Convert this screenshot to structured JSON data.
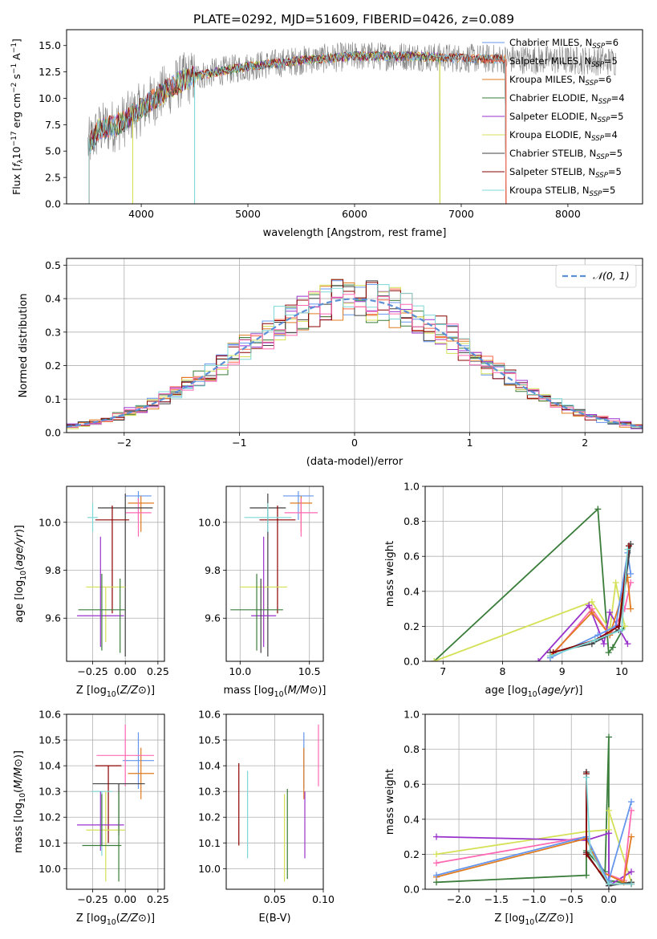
{
  "figure_title": "PLATE=0292, MJD=51609, FIBERID=0426, z=0.089",
  "chart_data": [
    {
      "id": "spectrum",
      "type": "line",
      "title": "PLATE=0292, MJD=51609, FIBERID=0426, z=0.089",
      "xlabel": "wavelength [Angstrom, rest frame]",
      "ylabel_parts": [
        "Flux [",
        "f",
        "λ",
        "10",
        "−17",
        " erg cm",
        "−2",
        " s",
        "−1",
        " A",
        "−1",
        "]"
      ],
      "xlim": [
        3300,
        8700
      ],
      "ylim": [
        0,
        16.5
      ],
      "xticks": [
        4000,
        5000,
        6000,
        7000,
        8000
      ],
      "yticks": [
        0.0,
        2.5,
        5.0,
        7.5,
        10.0,
        12.5,
        15.0
      ],
      "grid": false,
      "legend_position": "right",
      "series": [
        {
          "name": "Chabrier MILES",
          "nssp": 6,
          "color": "#6495ed",
          "x_range": [
            3510,
            7420
          ]
        },
        {
          "name": "Salpeter MILES",
          "nssp": 5,
          "color": "#ff6347",
          "x_range": [
            3510,
            7420
          ]
        },
        {
          "name": "Kroupa MILES",
          "nssp": 6,
          "color": "#e07b20",
          "x_range": [
            3510,
            7420
          ]
        },
        {
          "name": "Chabrier ELODIE",
          "nssp": 4,
          "color": "#3a7d3a",
          "x_range": [
            3510,
            6800
          ]
        },
        {
          "name": "Salpeter ELODIE",
          "nssp": 5,
          "color": "#9932cc",
          "x_range": [
            3510,
            6800
          ]
        },
        {
          "name": "Kroupa ELODIE",
          "nssp": 4,
          "color": "#d4e157",
          "x_range": [
            3510,
            6800
          ]
        },
        {
          "name": "Chabrier STELIB",
          "nssp": 5,
          "color": "#404040",
          "x_range": [
            3510,
            7420
          ]
        },
        {
          "name": "Salpeter STELIB",
          "nssp": 5,
          "color": "#8b0000",
          "x_range": [
            3510,
            7420
          ]
        },
        {
          "name": "Kroupa STELIB",
          "nssp": 5,
          "color": "#7fd8d8",
          "x_range": [
            3510,
            7420
          ]
        }
      ],
      "data_color": "#808080",
      "data_x_range": [
        3500,
        8450
      ],
      "continuum_y": [
        [
          3500,
          5.5
        ],
        [
          3600,
          7.0
        ],
        [
          3800,
          7.6
        ],
        [
          4000,
          9.0
        ],
        [
          4200,
          10.5
        ],
        [
          4400,
          11.8
        ],
        [
          4700,
          12.5
        ],
        [
          5000,
          13.0
        ],
        [
          5500,
          13.6
        ],
        [
          6000,
          14.0
        ],
        [
          6500,
          14.0
        ],
        [
          7000,
          13.8
        ],
        [
          7500,
          13.7
        ],
        [
          8000,
          13.6
        ],
        [
          8450,
          13.5
        ]
      ]
    },
    {
      "id": "residuals",
      "type": "histogram",
      "xlabel": "(data-model)/error",
      "ylabel": "Normed distribution",
      "xlim": [
        -2.5,
        2.5
      ],
      "ylim": [
        0,
        0.52
      ],
      "xticks": [
        -2,
        -1,
        0,
        1,
        2
      ],
      "yticks": [
        0.0,
        0.1,
        0.2,
        0.3,
        0.4,
        0.5
      ],
      "grid": true,
      "legend_position": "top-right",
      "reference_curve": {
        "name": "𝒩(0, 1)",
        "color": "#5b8fd6",
        "mean": 0,
        "sigma": 1
      },
      "bins": 50
    },
    {
      "id": "z-vs-age",
      "type": "errorbar",
      "xlabel": "Z [log10(Z/Z⊙)]",
      "ylabel": "age  [log10(age/yr)]",
      "xlim": [
        -0.45,
        0.3
      ],
      "ylim": [
        9.42,
        10.15
      ],
      "xticks": [
        -0.25,
        0.0,
        0.25
      ],
      "xtick_labels": [
        "−0.25",
        "0.00",
        "0.25"
      ],
      "yticks": [
        9.6,
        9.8,
        10.0
      ],
      "grid": true,
      "points": [
        {
          "color": "#6495ed",
          "x": 0.1,
          "xerr": 0.1,
          "y": 10.11,
          "yerr": [
            0.1,
            0.02
          ]
        },
        {
          "color": "#e07b20",
          "x": 0.12,
          "xerr": 0.1,
          "y": 10.08,
          "yerr": [
            0.12,
            0.03
          ]
        },
        {
          "color": "#ff69b4",
          "x": 0.1,
          "xerr": 0.1,
          "y": 10.04,
          "yerr": [
            0.1,
            0.06
          ]
        },
        {
          "color": "#404040",
          "x": 0.0,
          "xerr": 0.21,
          "y": 10.06,
          "yerr": [
            0.62,
            0.06
          ]
        },
        {
          "color": "#8b0000",
          "x": -0.1,
          "xerr": 0.13,
          "y": 10.01,
          "yerr": [
            0.39,
            0.06
          ]
        },
        {
          "color": "#7fd8d8",
          "x": -0.25,
          "xerr": 0.04,
          "y": 10.02,
          "yerr": [
            0.06,
            0.06
          ]
        },
        {
          "color": "#d4e157",
          "x": -0.15,
          "xerr": 0.15,
          "y": 9.73,
          "yerr": [
            0.23,
            0.0
          ]
        },
        {
          "color": "#9932cc",
          "x": -0.19,
          "xerr": 0.18,
          "y": 9.61,
          "yerr": [
            0.13,
            0.33
          ]
        },
        {
          "color": "#3a7d3a",
          "x": -0.18,
          "xerr": 0.18,
          "y": 9.635,
          "yerr": [
            0.17,
            0.15
          ]
        },
        {
          "color": "#3a7d3a",
          "x": -0.04,
          "xerr": 0.0,
          "y": 9.635,
          "yerr": [
            0.18,
            0.13
          ]
        }
      ]
    },
    {
      "id": "mass-vs-age",
      "type": "errorbar",
      "xlabel": "mass [log10(M/M⊙)]",
      "ylabel": "",
      "xlim": [
        9.9,
        10.6
      ],
      "ylim": [
        9.42,
        10.15
      ],
      "xticks": [
        10.0,
        10.5
      ],
      "xtick_labels": [
        "10.0",
        "10.5"
      ],
      "yticks": [
        9.6,
        9.8,
        10.0
      ],
      "grid": true,
      "points": [
        {
          "color": "#6495ed",
          "x": 10.42,
          "xerr": 0.11,
          "y": 10.11,
          "yerr": [
            0.1,
            0.02
          ]
        },
        {
          "color": "#e07b20",
          "x": 10.44,
          "xerr": 0.08,
          "y": 10.08,
          "yerr": [
            0.12,
            0.03
          ]
        },
        {
          "color": "#ff69b4",
          "x": 10.44,
          "xerr": 0.12,
          "y": 10.04,
          "yerr": [
            0.1,
            0.06
          ]
        },
        {
          "color": "#404040",
          "x": 10.2,
          "xerr": 0.13,
          "y": 10.06,
          "yerr": [
            0.62,
            0.06
          ]
        },
        {
          "color": "#8b0000",
          "x": 10.27,
          "xerr": 0.13,
          "y": 10.01,
          "yerr": [
            0.39,
            0.06
          ]
        },
        {
          "color": "#7fd8d8",
          "x": 10.2,
          "xerr": 0.17,
          "y": 10.02,
          "yerr": [
            0.06,
            0.06
          ]
        },
        {
          "color": "#d4e157",
          "x": 10.17,
          "xerr": 0.17,
          "y": 9.73,
          "yerr": [
            0.23,
            0.0
          ]
        },
        {
          "color": "#9932cc",
          "x": 10.17,
          "xerr": 0.09,
          "y": 9.61,
          "yerr": [
            0.13,
            0.33
          ]
        },
        {
          "color": "#3a7d3a",
          "x": 10.12,
          "xerr": 0.19,
          "y": 9.635,
          "yerr": [
            0.17,
            0.15
          ]
        },
        {
          "color": "#404040",
          "x": 10.15,
          "xerr": 0.0,
          "y": 9.635,
          "yerr": [
            0.18,
            0.13
          ]
        }
      ]
    },
    {
      "id": "age-vs-weight",
      "type": "line",
      "xlabel": "age  [log10(age/yr)]",
      "ylabel": "mass weight",
      "xlim": [
        6.7,
        10.35
      ],
      "ylim": [
        0,
        1.0
      ],
      "xticks": [
        7,
        8,
        9,
        10
      ],
      "yticks": [
        0.0,
        0.2,
        0.4,
        0.6,
        0.8,
        1.0
      ],
      "grid": true,
      "series": [
        {
          "color": "#3a7d3a",
          "x": [
            6.85,
            9.6,
            9.78,
            9.85,
            10.05
          ],
          "y": [
            0.0,
            0.87,
            0.05,
            0.08,
            0.2
          ]
        },
        {
          "color": "#d4e157",
          "x": [
            6.85,
            9.5,
            9.8,
            9.9,
            10.05
          ],
          "y": [
            0.0,
            0.34,
            0.18,
            0.45,
            0.2
          ]
        },
        {
          "color": "#9932cc",
          "x": [
            8.6,
            9.45,
            9.7,
            9.8,
            10.1
          ],
          "y": [
            0.0,
            0.32,
            0.1,
            0.28,
            0.1
          ]
        },
        {
          "color": "#ff69b4",
          "x": [
            8.8,
            9.5,
            9.8,
            10.05,
            10.15
          ],
          "y": [
            0.02,
            0.3,
            0.15,
            0.3,
            0.45
          ]
        },
        {
          "color": "#e07b20",
          "x": [
            8.8,
            9.5,
            9.8,
            10.1,
            10.15
          ],
          "y": [
            0.03,
            0.28,
            0.15,
            0.48,
            0.3
          ]
        },
        {
          "color": "#6495ed",
          "x": [
            8.8,
            9.6,
            9.9,
            10.1,
            10.15
          ],
          "y": [
            0.02,
            0.15,
            0.2,
            0.62,
            0.5
          ]
        },
        {
          "color": "#404040",
          "x": [
            8.8,
            9.5,
            9.95,
            10.15
          ],
          "y": [
            0.05,
            0.1,
            0.18,
            0.67
          ]
        },
        {
          "color": "#8b0000",
          "x": [
            8.85,
            9.55,
            9.95,
            10.12
          ],
          "y": [
            0.05,
            0.12,
            0.2,
            0.66
          ]
        },
        {
          "color": "#7fd8d8",
          "x": [
            8.8,
            9.55,
            10.0,
            10.1
          ],
          "y": [
            0.03,
            0.12,
            0.18,
            0.64
          ]
        }
      ]
    },
    {
      "id": "z-vs-mass",
      "type": "errorbar",
      "xlabel": "Z [log10(Z/Z⊙)]",
      "ylabel": "mass [log10(M/M⊙)]",
      "xlim": [
        -0.45,
        0.3
      ],
      "ylim": [
        9.92,
        10.6
      ],
      "xticks": [
        -0.25,
        0.0,
        0.25
      ],
      "xtick_labels": [
        "−0.25",
        "0.00",
        "0.25"
      ],
      "yticks": [
        10.0,
        10.1,
        10.2,
        10.3,
        10.4,
        10.5,
        10.6
      ],
      "grid": true,
      "points": [
        {
          "color": "#6495ed",
          "x": 0.1,
          "xerr": 0.12,
          "y": 10.42,
          "yerr": [
            0.11,
            0.11
          ]
        },
        {
          "color": "#e07b20",
          "x": 0.12,
          "xerr": 0.1,
          "y": 10.37,
          "yerr": [
            0.1,
            0.1
          ]
        },
        {
          "color": "#ff69b4",
          "x": 0.0,
          "xerr": 0.22,
          "y": 10.44,
          "yerr": [
            0.12,
            0.12
          ]
        },
        {
          "color": "#404040",
          "x": -0.05,
          "xerr": 0.2,
          "y": 10.33,
          "yerr": [
            0.2,
            0.0
          ]
        },
        {
          "color": "#8b0000",
          "x": -0.13,
          "xerr": 0.1,
          "y": 10.4,
          "yerr": [
            0.3,
            0.0
          ]
        },
        {
          "color": "#7fd8d8",
          "x": -0.18,
          "xerr": 0.08,
          "y": 10.3,
          "yerr": [
            0.25,
            0.0
          ]
        },
        {
          "color": "#d4e157",
          "x": -0.15,
          "xerr": 0.15,
          "y": 10.15,
          "yerr": [
            0.2,
            0.15
          ]
        },
        {
          "color": "#9932cc",
          "x": -0.19,
          "xerr": 0.18,
          "y": 10.17,
          "yerr": [
            0.1,
            0.13
          ]
        },
        {
          "color": "#3a7d3a",
          "x": -0.18,
          "xerr": 0.15,
          "y": 10.09,
          "yerr": [
            0.0,
            0.2
          ]
        },
        {
          "color": "#3a7d3a",
          "x": -0.05,
          "xerr": 0.0,
          "y": 10.2,
          "yerr": [
            0.25,
            0.1
          ]
        }
      ]
    },
    {
      "id": "ebv-vs-mass",
      "type": "errorbar",
      "xlabel": "E(B-V)",
      "ylabel": "",
      "xlim": [
        0.0,
        0.1
      ],
      "ylim": [
        9.92,
        10.6
      ],
      "xticks": [
        0.05,
        0.1
      ],
      "xtick_labels": [
        "0.05",
        "0.10"
      ],
      "yticks": [
        10.0,
        10.1,
        10.2,
        10.3,
        10.4,
        10.5,
        10.6
      ],
      "grid": true,
      "points": [
        {
          "color": "#8b0000",
          "x": 0.013,
          "xerr": 0,
          "y": 10.25,
          "yerr": [
            0.16,
            0.16
          ]
        },
        {
          "color": "#7fd8d8",
          "x": 0.022,
          "xerr": 0,
          "y": 10.21,
          "yerr": [
            0.17,
            0.17
          ]
        },
        {
          "color": "#d4e157",
          "x": 0.06,
          "xerr": 0,
          "y": 10.12,
          "yerr": [
            0.17,
            0.17
          ]
        },
        {
          "color": "#3a7d3a",
          "x": 0.063,
          "xerr": 0,
          "y": 10.14,
          "yerr": [
            0.18,
            0.17
          ]
        },
        {
          "color": "#6495ed",
          "x": 0.08,
          "xerr": 0,
          "y": 10.42,
          "yerr": [
            0.11,
            0.11
          ]
        },
        {
          "color": "#e07b20",
          "x": 0.08,
          "xerr": 0,
          "y": 10.37,
          "yerr": [
            0.1,
            0.1
          ]
        },
        {
          "color": "#9932cc",
          "x": 0.081,
          "xerr": 0,
          "y": 10.17,
          "yerr": [
            0.13,
            0.13
          ]
        },
        {
          "color": "#ff69b4",
          "x": 0.095,
          "xerr": 0,
          "y": 10.44,
          "yerr": [
            0.12,
            0.12
          ]
        }
      ]
    },
    {
      "id": "z-vs-weight",
      "type": "line",
      "xlabel": "Z [log10(Z/Z⊙)]",
      "ylabel": "mass weight",
      "xlim": [
        -2.45,
        0.45
      ],
      "ylim": [
        0,
        1.0
      ],
      "xticks": [
        -2.0,
        -1.5,
        -1.0,
        -0.5,
        0.0
      ],
      "xtick_labels": [
        "−2.0",
        "−1.5",
        "−1.0",
        "−0.5",
        "0.0"
      ],
      "yticks": [
        0.0,
        0.2,
        0.4,
        0.6,
        0.8,
        1.0
      ],
      "grid": true,
      "series": [
        {
          "color": "#3a7d3a",
          "x": [
            -2.3,
            -0.3,
            -0.3,
            -0.05,
            0.0,
            0.0,
            0.3
          ],
          "y": [
            0.04,
            0.08,
            0.22,
            0.1,
            0.87,
            0.05,
            0.03
          ]
        },
        {
          "color": "#d4e157",
          "x": [
            -2.3,
            -0.3,
            0.0,
            0.0,
            0.3
          ],
          "y": [
            0.2,
            0.33,
            0.34,
            0.45,
            0.04
          ]
        },
        {
          "color": "#9932cc",
          "x": [
            -2.3,
            -0.3,
            0.0,
            0.0,
            0.3
          ],
          "y": [
            0.3,
            0.28,
            0.32,
            0.02,
            0.1
          ]
        },
        {
          "color": "#ff69b4",
          "x": [
            -2.3,
            -0.3,
            -0.1,
            0.2,
            0.3
          ],
          "y": [
            0.15,
            0.3,
            0.1,
            0.05,
            0.45
          ]
        },
        {
          "color": "#e07b20",
          "x": [
            -2.3,
            -0.3,
            -0.1,
            0.2,
            0.3
          ],
          "y": [
            0.07,
            0.29,
            0.1,
            0.04,
            0.3
          ]
        },
        {
          "color": "#6495ed",
          "x": [
            -2.3,
            -0.3,
            0.0,
            0.0,
            0.3
          ],
          "y": [
            0.08,
            0.3,
            0.04,
            0.05,
            0.5
          ]
        },
        {
          "color": "#404040",
          "x": [
            -0.3,
            -0.3,
            0.0,
            0.3
          ],
          "y": [
            0.67,
            0.21,
            0.02,
            0.04
          ]
        },
        {
          "color": "#8b0000",
          "x": [
            -0.3,
            -0.3,
            0.0,
            0.3
          ],
          "y": [
            0.66,
            0.2,
            0.03,
            0.03
          ]
        },
        {
          "color": "#7fd8d8",
          "x": [
            -0.3,
            -0.25,
            0.0,
            0.3
          ],
          "y": [
            0.64,
            0.22,
            0.03,
            0.03
          ]
        }
      ]
    }
  ]
}
